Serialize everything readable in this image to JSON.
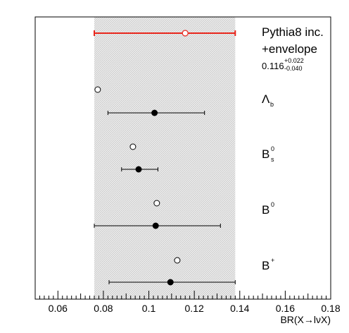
{
  "chart_data": {
    "type": "scatter",
    "xlabel": "BR(X→lνX)",
    "xlim": [
      0.05,
      0.18
    ],
    "x_ticks": [
      0.06,
      0.08,
      0.1,
      0.12,
      0.14,
      0.16,
      0.18
    ],
    "x_tick_labels": [
      "0.06",
      "0.08",
      "0.1",
      "0.12",
      "0.14",
      "0.16",
      "0.18"
    ],
    "band": {
      "low": 0.076,
      "high": 0.138
    },
    "inclusive": {
      "label_line1": "Pythia8 inc.",
      "label_line2": "+envelope",
      "value_text": "0.116",
      "err_plus_text": "+0.022",
      "err_minus_text": "-0.040",
      "value": 0.116,
      "low": 0.076,
      "high": 0.138,
      "color": "#e8261c"
    },
    "species": [
      {
        "id": "lambda_b",
        "label": "Λ",
        "sub": "b",
        "sup": "",
        "open": 0.0775,
        "filled": 0.1025,
        "low": 0.082,
        "high": 0.1245
      },
      {
        "id": "b_s0",
        "label": "B",
        "sub": "s",
        "sup": "0",
        "open": 0.093,
        "filled": 0.0955,
        "low": 0.088,
        "high": 0.104
      },
      {
        "id": "b0",
        "label": "B",
        "sub": "",
        "sup": "0",
        "open": 0.1035,
        "filled": 0.103,
        "low": 0.076,
        "high": 0.1315
      },
      {
        "id": "b_plus",
        "label": "B",
        "sub": "",
        "sup": "+",
        "open": 0.1125,
        "filled": 0.1095,
        "low": 0.0825,
        "high": 0.138
      }
    ]
  }
}
